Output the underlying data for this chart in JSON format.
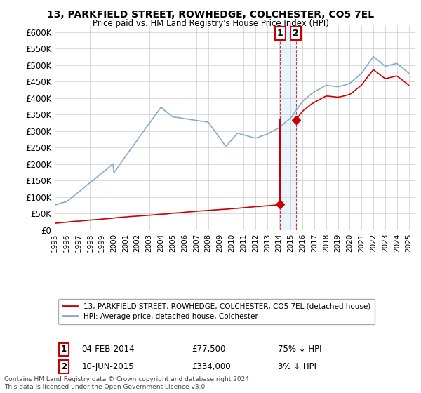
{
  "title": "13, PARKFIELD STREET, ROWHEDGE, COLCHESTER, CO5 7EL",
  "subtitle": "Price paid vs. HM Land Registry's House Price Index (HPI)",
  "legend_label_red": "13, PARKFIELD STREET, ROWHEDGE, COLCHESTER, CO5 7EL (detached house)",
  "legend_label_blue": "HPI: Average price, detached house, Colchester",
  "transaction1_date": "04-FEB-2014",
  "transaction1_price": "£77,500",
  "transaction1_hpi": "75% ↓ HPI",
  "transaction1_year": 2014.09,
  "transaction1_value": 77500,
  "transaction2_date": "10-JUN-2015",
  "transaction2_price": "£334,000",
  "transaction2_hpi": "3% ↓ HPI",
  "transaction2_year": 2015.44,
  "transaction2_value": 334000,
  "footer": "Contains HM Land Registry data © Crown copyright and database right 2024.\nThis data is licensed under the Open Government Licence v3.0.",
  "ylim": [
    0,
    620000
  ],
  "yticks": [
    0,
    50000,
    100000,
    150000,
    200000,
    250000,
    300000,
    350000,
    400000,
    450000,
    500000,
    550000,
    600000
  ],
  "ytick_labels": [
    "£0",
    "£50K",
    "£100K",
    "£150K",
    "£200K",
    "£250K",
    "£300K",
    "£350K",
    "£400K",
    "£450K",
    "£500K",
    "£550K",
    "£600K"
  ],
  "xlim": [
    1995,
    2025.5
  ],
  "background_color": "#ffffff",
  "red_color": "#cc0000",
  "blue_color": "#88aacc",
  "grid_color": "#cccccc",
  "shade_color": "#ddeeff"
}
